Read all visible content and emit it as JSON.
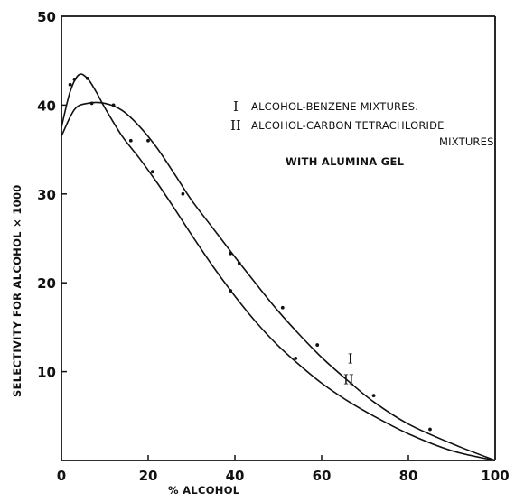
{
  "chart_data": {
    "type": "line",
    "xlabel": "% ALCOHOL",
    "ylabel": "SELECTIVITY FOR ALCOHOL × 1000",
    "xlim": [
      0,
      100
    ],
    "ylim": [
      0,
      50
    ],
    "x_ticks": [
      "0",
      "20",
      "40",
      "60",
      "80",
      "100"
    ],
    "y_ticks": [
      "10",
      "20",
      "30",
      "40",
      "50"
    ],
    "grid": false,
    "legend": {
      "placement": "top-right",
      "lines": [
        {
          "marker": "I",
          "text": "ALCOHOL-BENZENE MIXTURES."
        },
        {
          "marker": "II",
          "text": "ALCOHOL-CARBON TETRACHLORIDE"
        },
        {
          "marker": "",
          "text": "MIXTURES"
        },
        {
          "marker": "",
          "text": "WITH ALUMINA GEL"
        }
      ]
    },
    "series": [
      {
        "name": "I",
        "x": [
          0,
          3,
          6,
          10,
          14,
          18,
          22,
          26,
          30,
          35,
          40,
          45,
          50,
          55,
          60,
          66,
          72,
          80,
          90,
          100
        ],
        "y": [
          36.5,
          39.5,
          40.2,
          40.2,
          39.4,
          37.6,
          35.2,
          32.3,
          29.3,
          26.1,
          22.9,
          19.8,
          16.8,
          14.1,
          11.6,
          9.0,
          6.6,
          4.1,
          1.9,
          0
        ],
        "points": [
          [
            7,
            40.2
          ],
          [
            12,
            40.0
          ],
          [
            20,
            36.0
          ],
          [
            28,
            30.0
          ],
          [
            39,
            23.3
          ],
          [
            41,
            22.2
          ],
          [
            51,
            17.2
          ],
          [
            59,
            13.0
          ],
          [
            72,
            7.3
          ],
          [
            85,
            3.5
          ]
        ],
        "label_at": [
          66,
          10.9
        ]
      },
      {
        "name": "II",
        "x": [
          0,
          2,
          4,
          6,
          8,
          10,
          14,
          18,
          22,
          26,
          30,
          35,
          40,
          45,
          50,
          55,
          60,
          66,
          72,
          80,
          90,
          100
        ],
        "y": [
          37.5,
          41.5,
          43.4,
          43.0,
          41.5,
          39.7,
          36.5,
          34.0,
          31.3,
          28.4,
          25.4,
          21.8,
          18.5,
          15.5,
          12.9,
          10.7,
          8.7,
          6.7,
          5.0,
          3.0,
          1.1,
          0
        ],
        "points": [
          [
            2,
            42.3
          ],
          [
            3,
            42.9
          ],
          [
            6,
            43.0
          ],
          [
            16,
            36.0
          ],
          [
            21,
            32.5
          ],
          [
            39,
            19.1
          ],
          [
            54,
            11.5
          ]
        ],
        "label_at": [
          65,
          8.6
        ]
      }
    ]
  }
}
